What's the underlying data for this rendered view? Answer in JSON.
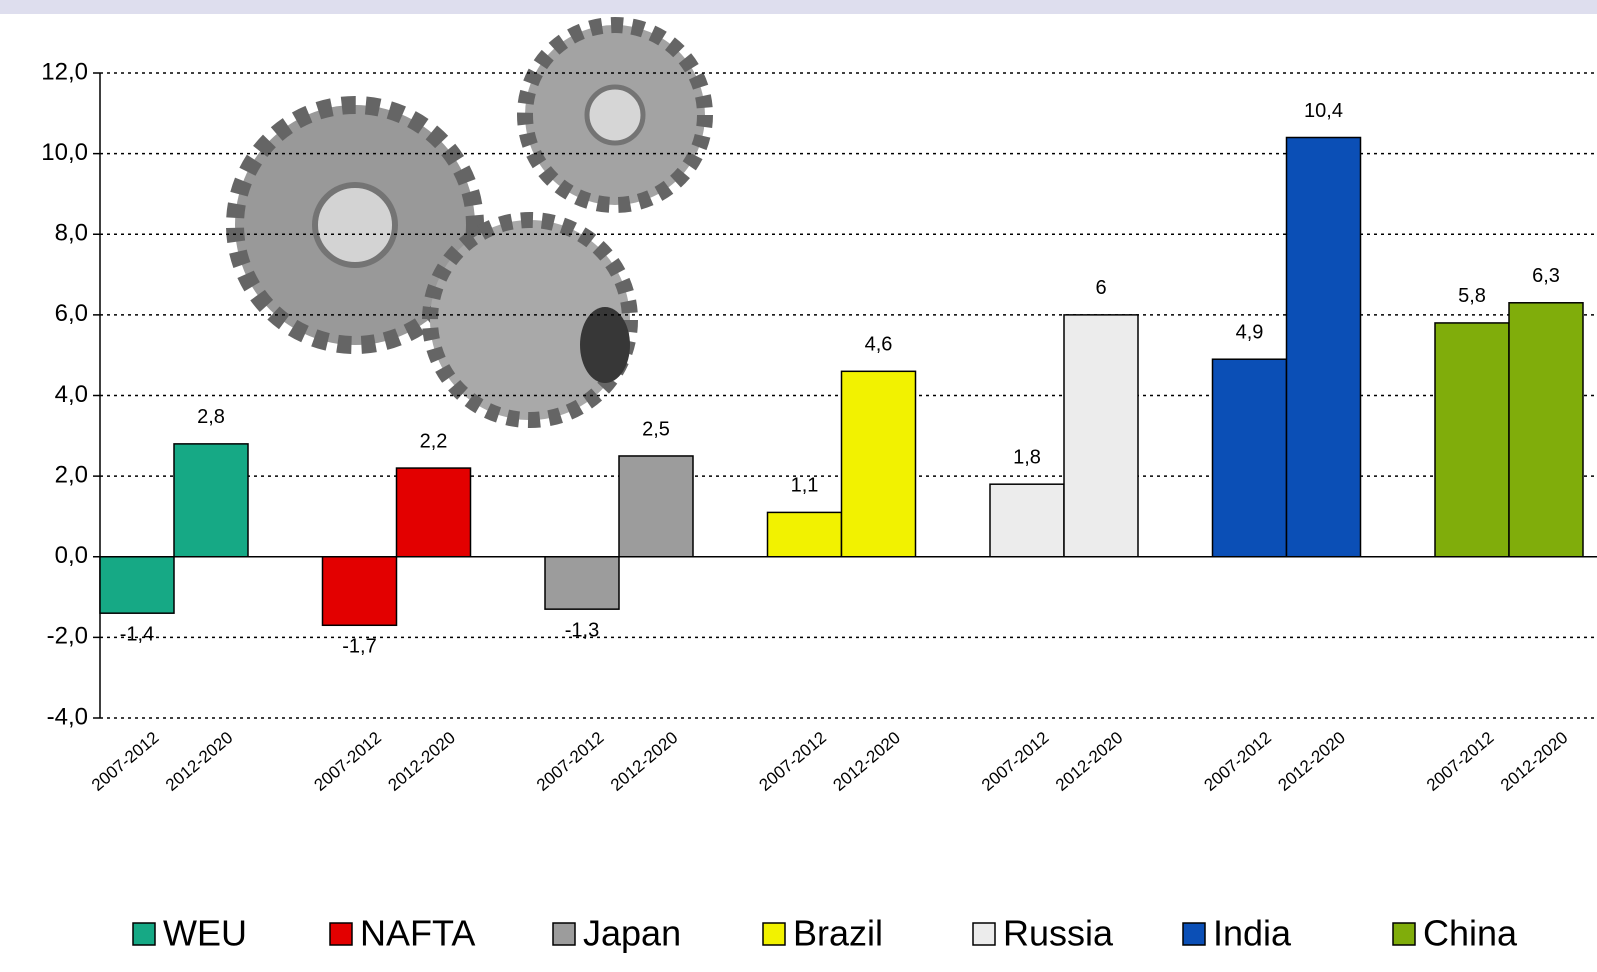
{
  "chart_data": {
    "type": "grouped-bar",
    "categories": [
      "2007-2012",
      "2012-2020"
    ],
    "series": [
      {
        "name": "WEU",
        "color": "#16a985",
        "values": [
          -1.4,
          2.8
        ],
        "value_labels": [
          "-1,4",
          "2,8"
        ]
      },
      {
        "name": "NAFTA",
        "color": "#e30000",
        "values": [
          -1.7,
          2.2
        ],
        "value_labels": [
          "-1,7",
          "2,2"
        ]
      },
      {
        "name": "Japan",
        "color": "#9c9c9c",
        "values": [
          -1.3,
          2.5
        ],
        "value_labels": [
          "-1,3",
          "2,5"
        ]
      },
      {
        "name": "Brazil",
        "color": "#f2f200",
        "values": [
          1.1,
          4.6
        ],
        "value_labels": [
          "1,1",
          "4,6"
        ]
      },
      {
        "name": "Russia",
        "color": "#ececec",
        "values": [
          1.8,
          6
        ],
        "value_labels": [
          "1,8",
          "6"
        ]
      },
      {
        "name": "India",
        "color": "#0b4fb6",
        "values": [
          4.9,
          10.4
        ],
        "value_labels": [
          "4,9",
          "10,4"
        ]
      },
      {
        "name": "China",
        "color": "#80ad0b",
        "values": [
          5.8,
          6.3
        ],
        "value_labels": [
          "5,8",
          "6,3"
        ]
      }
    ],
    "ylim": [
      -4,
      12
    ],
    "yticks": [
      {
        "value": -4,
        "label": "-4,0"
      },
      {
        "value": -2,
        "label": "-2,0"
      },
      {
        "value": 0,
        "label": "0,0"
      },
      {
        "value": 2,
        "label": "2,0"
      },
      {
        "value": 4,
        "label": "4,0"
      },
      {
        "value": 6,
        "label": "6,0"
      },
      {
        "value": 8,
        "label": "8,0"
      },
      {
        "value": 10,
        "label": "10,0"
      },
      {
        "value": 12,
        "label": "12,0"
      }
    ],
    "grid": true,
    "legend": "bottom"
  }
}
